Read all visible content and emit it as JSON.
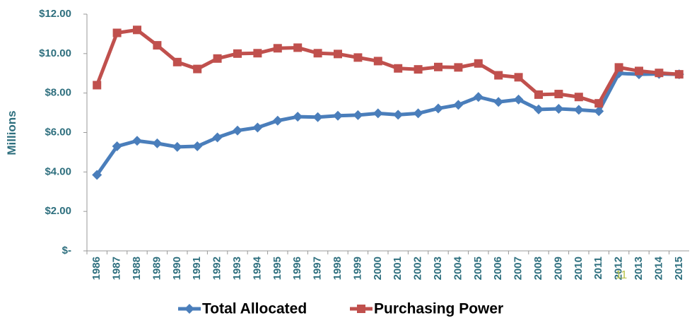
{
  "chart_data": {
    "type": "line",
    "y_label": "Millions",
    "annotation": "11",
    "categories": [
      "1986",
      "1987",
      "1988",
      "1989",
      "1990",
      "1991",
      "1992",
      "1993",
      "1994",
      "1995",
      "1996",
      "1997",
      "1998",
      "1999",
      "2000",
      "2001",
      "2002",
      "2003",
      "2004",
      "2005",
      "2006",
      "2007",
      "2008",
      "2009",
      "2010",
      "2011",
      "2012",
      "2013",
      "2014",
      "2015"
    ],
    "series": [
      {
        "name": "Total Allocated",
        "color": "#4a7ebb",
        "marker": "diamond",
        "values": [
          3.85,
          5.3,
          5.58,
          5.45,
          5.27,
          5.3,
          5.75,
          6.1,
          6.25,
          6.6,
          6.8,
          6.78,
          6.85,
          6.88,
          6.97,
          6.9,
          6.97,
          7.22,
          7.4,
          7.8,
          7.55,
          7.67,
          7.17,
          7.2,
          7.15,
          7.08,
          9.0,
          8.95,
          8.97,
          8.95
        ]
      },
      {
        "name": "Purchasing Power",
        "color": "#c0504d",
        "marker": "square",
        "values": [
          8.4,
          11.05,
          11.2,
          10.42,
          9.57,
          9.22,
          9.75,
          10.0,
          10.02,
          10.27,
          10.3,
          10.02,
          9.98,
          9.8,
          9.62,
          9.25,
          9.2,
          9.32,
          9.3,
          9.5,
          8.9,
          8.8,
          7.92,
          7.95,
          7.8,
          7.48,
          9.3,
          9.12,
          9.02,
          8.95
        ]
      }
    ],
    "ylim": [
      0,
      12
    ],
    "yticks": [
      {
        "value": 0,
        "label": "$-"
      },
      {
        "value": 2,
        "label": "$2.00"
      },
      {
        "value": 4,
        "label": "$4.00"
      },
      {
        "value": 6,
        "label": "$6.00"
      },
      {
        "value": 8,
        "label": "$8.00"
      },
      {
        "value": 10,
        "label": "$10.00"
      },
      {
        "value": 12,
        "label": "$12.00"
      }
    ],
    "grid": false,
    "legend": "bottom"
  }
}
